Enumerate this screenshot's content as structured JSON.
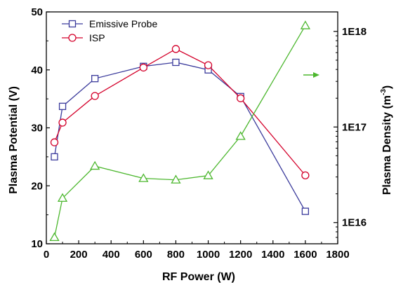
{
  "chart_data": {
    "type": "line",
    "xlabel": "RF Power (W)",
    "ylabel_left": "Plasma Potential (V)",
    "ylabel_right": "Plasma Density (m",
    "ylabel_right_exp": "-3",
    "ylabel_right_close": ")",
    "xlim": [
      0,
      1800
    ],
    "ylim_left": [
      10,
      50
    ],
    "ylim_right": [
      6000000000000000.0,
      1.6e+18
    ],
    "right_scale": "log",
    "x_ticks": [
      "0",
      "200",
      "400",
      "600",
      "800",
      "1000",
      "1200",
      "1400",
      "1600",
      "1800"
    ],
    "y_left_ticks": [
      "10",
      "20",
      "30",
      "40",
      "50"
    ],
    "y_right_ticks": [
      "1E16",
      "1E17",
      "1E18"
    ],
    "legend_position": "top-left",
    "series": [
      {
        "name": "Emissive Probe",
        "axis": "left",
        "marker": "square",
        "color": "#3b3b9c",
        "x": [
          50,
          100,
          300,
          600,
          800,
          1000,
          1200,
          1600
        ],
        "y": [
          25.0,
          33.7,
          38.5,
          40.6,
          41.3,
          40.0,
          35.4,
          15.6
        ]
      },
      {
        "name": "ISP",
        "axis": "left",
        "marker": "circle",
        "color": "#d4002a",
        "x": [
          50,
          100,
          300,
          600,
          800,
          1000,
          1200,
          1600
        ],
        "y": [
          27.5,
          30.9,
          35.5,
          40.4,
          43.6,
          40.8,
          35.1,
          21.8
        ]
      },
      {
        "axis": "right",
        "marker": "triangle",
        "color": "#4cb72e",
        "x": [
          50,
          100,
          300,
          600,
          800,
          1000,
          1200,
          1600
        ],
        "y": [
          7000000000000000.0,
          1.8e+16,
          3.9e+16,
          2.9e+16,
          2.8e+16,
          3.1e+16,
          8e+16,
          1.15e+18
        ]
      }
    ]
  }
}
